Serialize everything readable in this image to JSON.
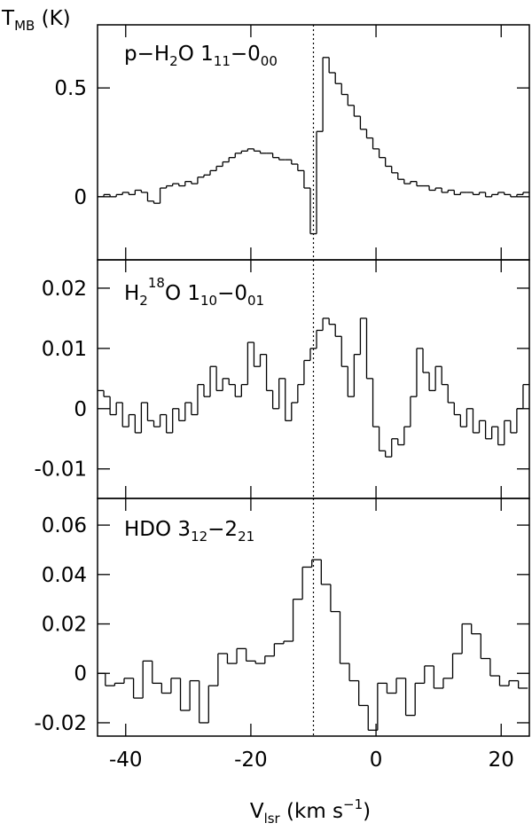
{
  "chart_data": [
    {
      "type": "step",
      "y_label": [
        "T",
        "MB",
        " (K)"
      ],
      "label": [
        "p−H",
        "2",
        "O 1",
        "11",
        "−0",
        "00"
      ],
      "xlim": [
        -44.5,
        24.5
      ],
      "xticks": [
        -40,
        -20,
        0,
        20
      ],
      "ylim": [
        -0.29,
        0.79
      ],
      "yticks": [
        0,
        0.5
      ],
      "vline": -10,
      "color": "#000000",
      "x": [
        -44,
        -43,
        -42,
        -41,
        -40,
        -39,
        -38,
        -37,
        -36,
        -35,
        -34,
        -33,
        -32,
        -31,
        -30,
        -29,
        -28,
        -27,
        -26,
        -25,
        -24,
        -23,
        -22,
        -21,
        -20,
        -19,
        -18,
        -17,
        -16,
        -15,
        -14,
        -13,
        -12,
        -11,
        -10,
        -9,
        -8,
        -7,
        -6,
        -5,
        -4,
        -3,
        -2,
        -1,
        0,
        1,
        2,
        3,
        4,
        5,
        6,
        7,
        8,
        9,
        10,
        11,
        12,
        13,
        14,
        15,
        16,
        17,
        18,
        19,
        20,
        21,
        22,
        23,
        24
      ],
      "values": [
        0.0,
        0.01,
        0.0,
        0.01,
        0.02,
        0.01,
        0.03,
        0.02,
        -0.02,
        -0.03,
        0.04,
        0.05,
        0.06,
        0.05,
        0.07,
        0.06,
        0.09,
        0.1,
        0.12,
        0.14,
        0.16,
        0.18,
        0.2,
        0.21,
        0.22,
        0.21,
        0.2,
        0.2,
        0.18,
        0.17,
        0.17,
        0.15,
        0.12,
        0.04,
        -0.17,
        0.3,
        0.64,
        0.57,
        0.52,
        0.47,
        0.42,
        0.37,
        0.31,
        0.27,
        0.22,
        0.18,
        0.14,
        0.11,
        0.08,
        0.06,
        0.07,
        0.05,
        0.05,
        0.03,
        0.04,
        0.02,
        0.03,
        0.01,
        0.02,
        0.02,
        0.01,
        0.02,
        0.0,
        0.01,
        0.02,
        0.01,
        0.0,
        0.01,
        0.02
      ]
    },
    {
      "type": "step",
      "label": [
        "H",
        "2",
        "18",
        "O 1",
        "10",
        "−0",
        "01"
      ],
      "xlim": [
        -44.5,
        24.5
      ],
      "xticks": [
        -40,
        -20,
        0,
        20
      ],
      "ylim": [
        -0.0149,
        0.0247
      ],
      "yticks": [
        -0.01,
        0,
        0.01,
        0.02
      ],
      "vline": -10,
      "color": "#000000",
      "x": [
        -44,
        -43,
        -42,
        -41,
        -40,
        -39,
        -38,
        -37,
        -36,
        -35,
        -34,
        -33,
        -32,
        -31,
        -30,
        -29,
        -28,
        -27,
        -26,
        -25,
        -24,
        -23,
        -22,
        -21,
        -20,
        -19,
        -18,
        -17,
        -16,
        -15,
        -14,
        -13,
        -12,
        -11,
        -10,
        -9,
        -8,
        -7,
        -6,
        -5,
        -4,
        -3,
        -2,
        -1,
        0,
        1,
        2,
        3,
        4,
        5,
        6,
        7,
        8,
        9,
        10,
        11,
        12,
        13,
        14,
        15,
        16,
        17,
        18,
        19,
        20,
        21,
        22,
        23,
        24
      ],
      "values": [
        0.003,
        0.002,
        -0.001,
        0.001,
        -0.003,
        -0.001,
        -0.004,
        0.001,
        -0.002,
        -0.003,
        -0.001,
        -0.004,
        0,
        -0.002,
        0.001,
        -0.001,
        0.004,
        0.002,
        0.007,
        0.003,
        0.005,
        0.004,
        0.002,
        0.004,
        0.011,
        0.007,
        0.009,
        0.003,
        0,
        0.005,
        -0.002,
        0.001,
        0.004,
        0.008,
        0.01,
        0.013,
        0.015,
        0.014,
        0.012,
        0.007,
        0.002,
        0.009,
        0.015,
        0.005,
        -0.003,
        -0.007,
        -0.008,
        -0.005,
        -0.006,
        -0.003,
        0.002,
        0.01,
        0.006,
        0.003,
        0.007,
        0.004,
        0.001,
        -0.001,
        -0.003,
        0,
        -0.004,
        -0.002,
        -0.005,
        -0.003,
        -0.006,
        -0.002,
        -0.004,
        0,
        0.004
      ]
    },
    {
      "type": "step",
      "label": [
        "HDO 3",
        "12",
        "−2",
        "21"
      ],
      "x_label": [
        "V",
        "lsr",
        " (km s",
        "−1",
        ")"
      ],
      "xlim": [
        -44.5,
        24.5
      ],
      "xticks": [
        -40,
        -20,
        0,
        20
      ],
      "ylim": [
        -0.0254,
        0.0708
      ],
      "yticks": [
        -0.02,
        0,
        0.02,
        0.04,
        0.06
      ],
      "vline": -10,
      "color": "#000000",
      "x": [
        -44,
        -42.5,
        -41,
        -39.5,
        -38,
        -36.5,
        -35,
        -33.5,
        -32,
        -30.5,
        -29,
        -27.5,
        -26,
        -24.5,
        -23,
        -21.5,
        -20,
        -18.5,
        -17,
        -15.5,
        -14,
        -12.5,
        -11,
        -9.5,
        -8,
        -6.5,
        -5,
        -3.5,
        -2,
        -0.5,
        1,
        2.5,
        4,
        5.5,
        7,
        8.5,
        10,
        11.5,
        13,
        14.5,
        16,
        17.5,
        19,
        20.5,
        22,
        23.5
      ],
      "values": [
        0,
        -0.005,
        -0.004,
        -0.002,
        -0.01,
        0.005,
        -0.004,
        -0.008,
        -0.002,
        -0.015,
        -0.003,
        -0.02,
        -0.005,
        0.008,
        0.004,
        0.01,
        0.005,
        0.004,
        0.007,
        0.012,
        0.013,
        0.03,
        0.043,
        0.046,
        0.036,
        0.025,
        0.004,
        -0.003,
        -0.013,
        -0.023,
        -0.004,
        -0.008,
        -0.002,
        -0.017,
        -0.004,
        0.003,
        -0.006,
        -0.002,
        0.008,
        0.02,
        0.016,
        0.006,
        -0.001,
        -0.005,
        -0.003,
        -0.006
      ]
    }
  ]
}
